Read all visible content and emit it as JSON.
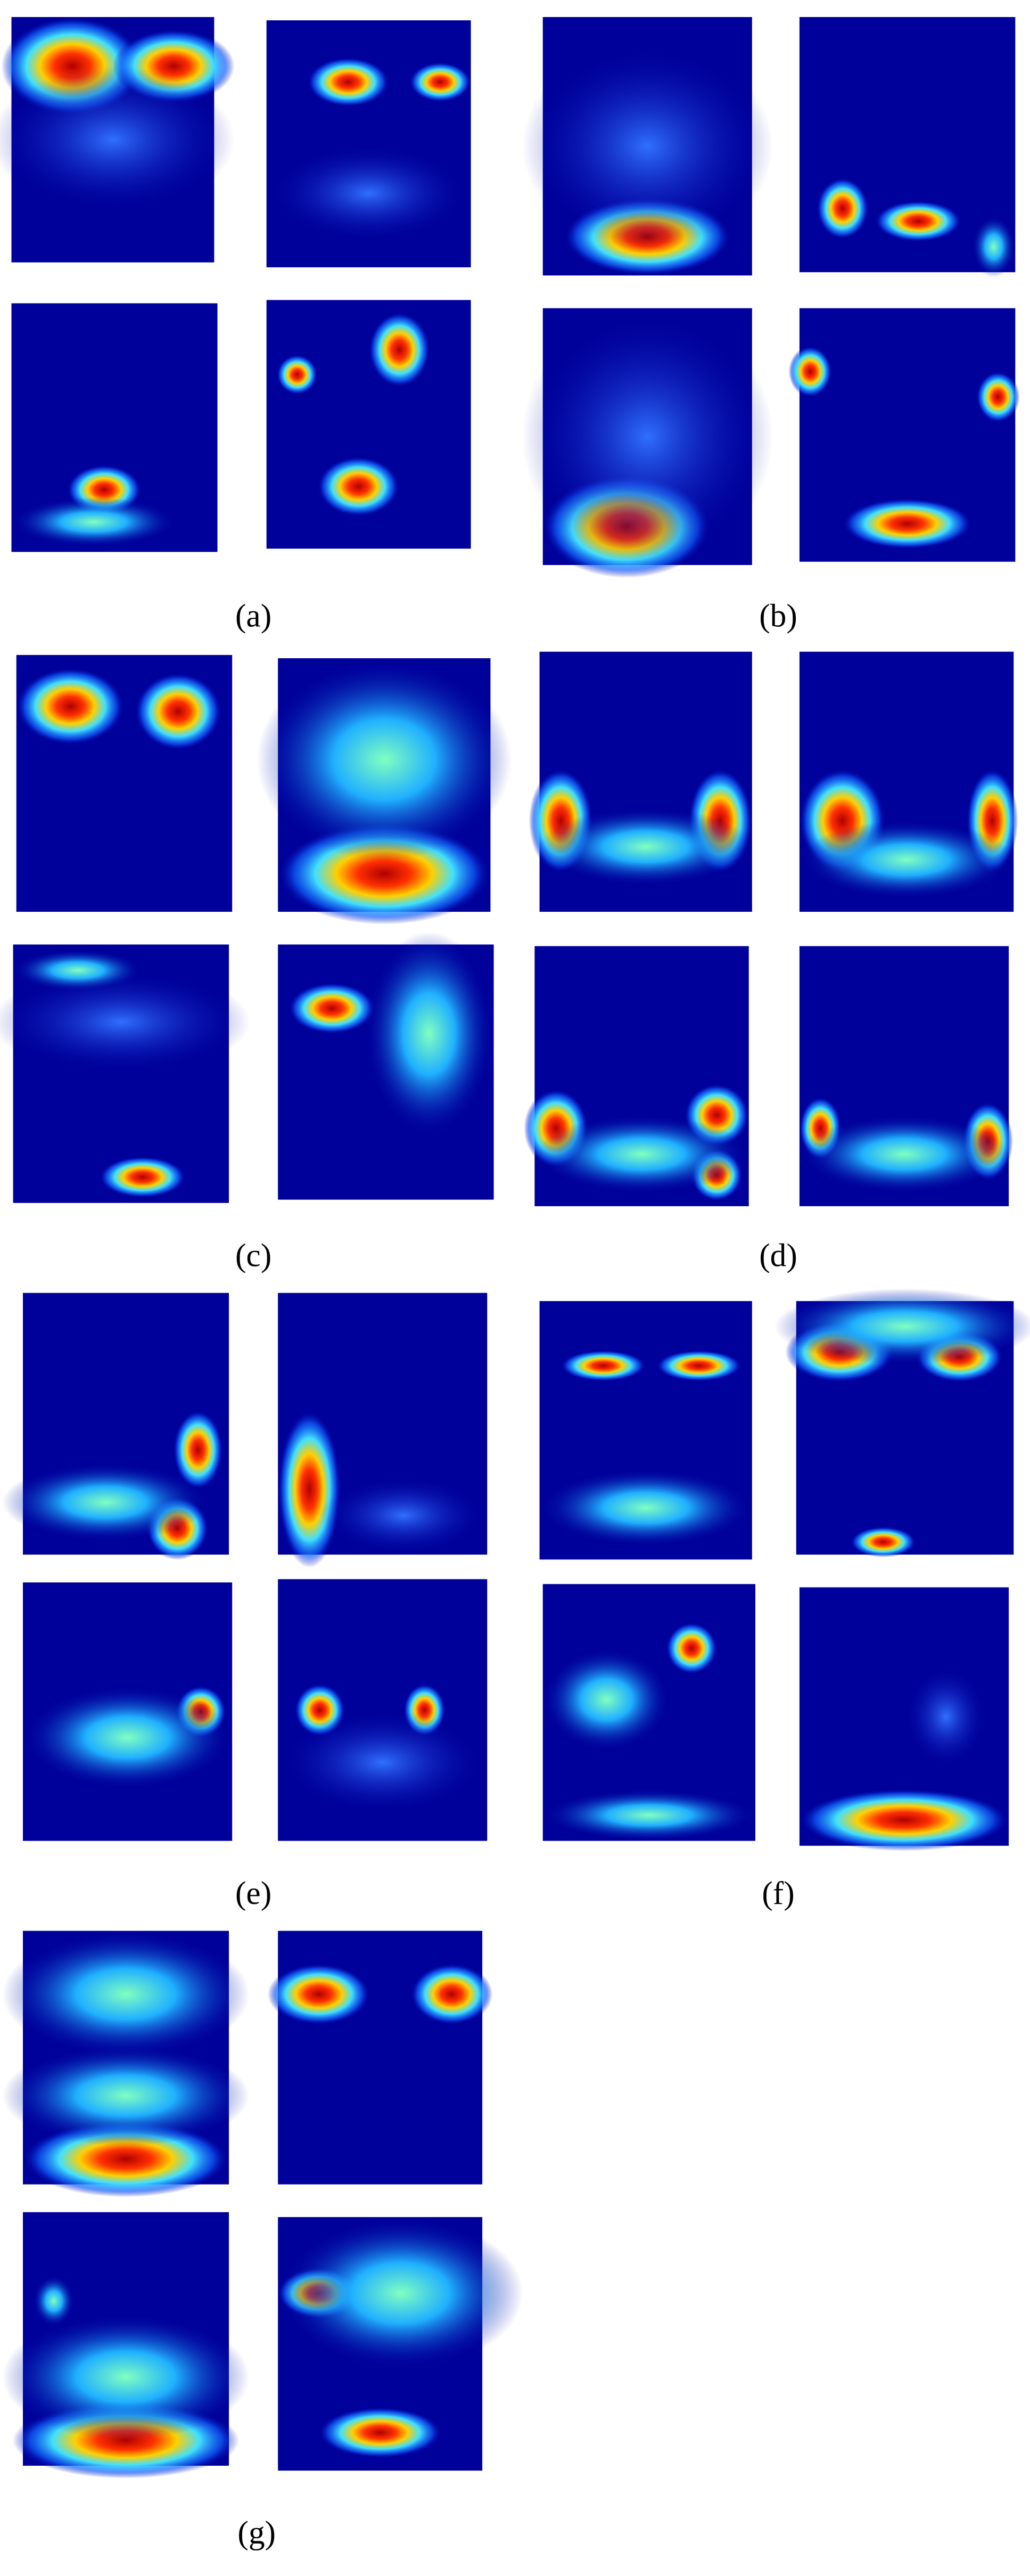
{
  "figure": {
    "captions": [
      "(a)",
      "(b)",
      "(c)",
      "(d)",
      "(e)",
      "(f)",
      "(g)"
    ]
  }
}
